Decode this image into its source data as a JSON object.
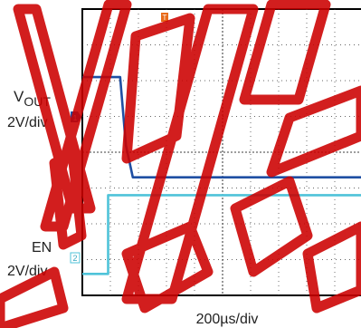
{
  "chart_data": {
    "type": "line",
    "title": "",
    "xlabel": "200µs/div",
    "channels": [
      {
        "name_main": "V",
        "name_sub": "OUT",
        "scale": "2V/div",
        "marker": "1",
        "color": "#1f4fa3",
        "x_div": [
          0,
          1.35,
          1.55,
          1.8,
          10
        ],
        "y_div": [
          6.1,
          6.1,
          4.2,
          3.3,
          3.3
        ]
      },
      {
        "name_main": "EN",
        "name_sub": "",
        "scale": "2V/div",
        "marker": "2",
        "color": "#4fc3d9",
        "x_div": [
          0,
          0.92,
          0.92,
          10
        ],
        "y_div": [
          0.6,
          0.6,
          2.8,
          2.8
        ]
      }
    ],
    "trigger_marker": "T",
    "divisions": {
      "x": 10,
      "y": 8
    },
    "grid": true
  },
  "watermark": {
    "text": "VVVVVVVV DEFERRED 5555",
    "color": "#cc0000"
  }
}
